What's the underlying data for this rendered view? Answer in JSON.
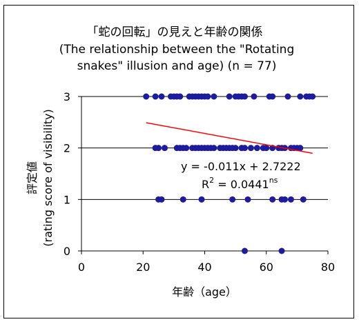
{
  "chart_data": {
    "type": "scatter",
    "title_lines": [
      "「蛇の回転」の見えと年齢の関係",
      "(The relationship between the \"Rotating",
      "snakes\" illusion and age) (n = 77)"
    ],
    "xlabel": "年齢（age）",
    "ylabel_lines": [
      "評定値",
      "(rating score of visibility)"
    ],
    "xlim": [
      0,
      80
    ],
    "ylim": [
      0,
      3
    ],
    "xticks": [
      "0",
      "20",
      "40",
      "60",
      "80"
    ],
    "yticks": [
      "0",
      "1",
      "2",
      "3"
    ],
    "grid": "horizontal",
    "legend": "none",
    "marker_color": "#1c1c9c",
    "trend_color": "#ff0000",
    "trendline": {
      "slope": -0.011,
      "intercept": 2.7222,
      "x_range": [
        21,
        75
      ]
    },
    "equation_text": "y = -0.011x + 2.7222",
    "r2_text": {
      "prefix": "R",
      "sup": "2",
      "value": " = 0.0441",
      "sig": "ns"
    },
    "points": [
      {
        "x": 21,
        "y": 3
      },
      {
        "x": 24,
        "y": 3
      },
      {
        "x": 26,
        "y": 3
      },
      {
        "x": 29,
        "y": 3
      },
      {
        "x": 30,
        "y": 3
      },
      {
        "x": 31,
        "y": 3
      },
      {
        "x": 32,
        "y": 3
      },
      {
        "x": 35,
        "y": 3
      },
      {
        "x": 36,
        "y": 3
      },
      {
        "x": 37,
        "y": 3
      },
      {
        "x": 38,
        "y": 3
      },
      {
        "x": 39,
        "y": 3
      },
      {
        "x": 40,
        "y": 3
      },
      {
        "x": 41,
        "y": 3
      },
      {
        "x": 43,
        "y": 3
      },
      {
        "x": 48,
        "y": 3
      },
      {
        "x": 50,
        "y": 3
      },
      {
        "x": 51,
        "y": 3
      },
      {
        "x": 52,
        "y": 3
      },
      {
        "x": 53,
        "y": 3
      },
      {
        "x": 56,
        "y": 3
      },
      {
        "x": 61,
        "y": 3
      },
      {
        "x": 62,
        "y": 3
      },
      {
        "x": 67,
        "y": 3
      },
      {
        "x": 71,
        "y": 3
      },
      {
        "x": 73,
        "y": 3
      },
      {
        "x": 74,
        "y": 3
      },
      {
        "x": 75,
        "y": 3
      },
      {
        "x": 24,
        "y": 2
      },
      {
        "x": 25,
        "y": 2
      },
      {
        "x": 27,
        "y": 2
      },
      {
        "x": 31,
        "y": 2
      },
      {
        "x": 32,
        "y": 2
      },
      {
        "x": 33,
        "y": 2
      },
      {
        "x": 34,
        "y": 2
      },
      {
        "x": 36,
        "y": 2
      },
      {
        "x": 37,
        "y": 2
      },
      {
        "x": 38,
        "y": 2
      },
      {
        "x": 39,
        "y": 2
      },
      {
        "x": 40,
        "y": 2
      },
      {
        "x": 41,
        "y": 2
      },
      {
        "x": 42,
        "y": 2
      },
      {
        "x": 43,
        "y": 2
      },
      {
        "x": 45,
        "y": 2
      },
      {
        "x": 46,
        "y": 2
      },
      {
        "x": 47,
        "y": 2
      },
      {
        "x": 48,
        "y": 2
      },
      {
        "x": 49,
        "y": 2
      },
      {
        "x": 50,
        "y": 2
      },
      {
        "x": 52,
        "y": 2
      },
      {
        "x": 53,
        "y": 2
      },
      {
        "x": 55,
        "y": 2
      },
      {
        "x": 57,
        "y": 2
      },
      {
        "x": 59,
        "y": 2
      },
      {
        "x": 60,
        "y": 2
      },
      {
        "x": 62,
        "y": 2
      },
      {
        "x": 64,
        "y": 2
      },
      {
        "x": 65,
        "y": 2
      },
      {
        "x": 66,
        "y": 2
      },
      {
        "x": 68,
        "y": 2
      },
      {
        "x": 69,
        "y": 2
      },
      {
        "x": 70,
        "y": 2
      },
      {
        "x": 71,
        "y": 2
      },
      {
        "x": 25,
        "y": 1
      },
      {
        "x": 26,
        "y": 1
      },
      {
        "x": 33,
        "y": 1
      },
      {
        "x": 39,
        "y": 1
      },
      {
        "x": 49,
        "y": 1
      },
      {
        "x": 54,
        "y": 1
      },
      {
        "x": 62,
        "y": 1
      },
      {
        "x": 65,
        "y": 1
      },
      {
        "x": 66,
        "y": 1
      },
      {
        "x": 68,
        "y": 1
      },
      {
        "x": 72,
        "y": 1
      },
      {
        "x": 53,
        "y": 0
      },
      {
        "x": 65,
        "y": 0
      }
    ]
  }
}
